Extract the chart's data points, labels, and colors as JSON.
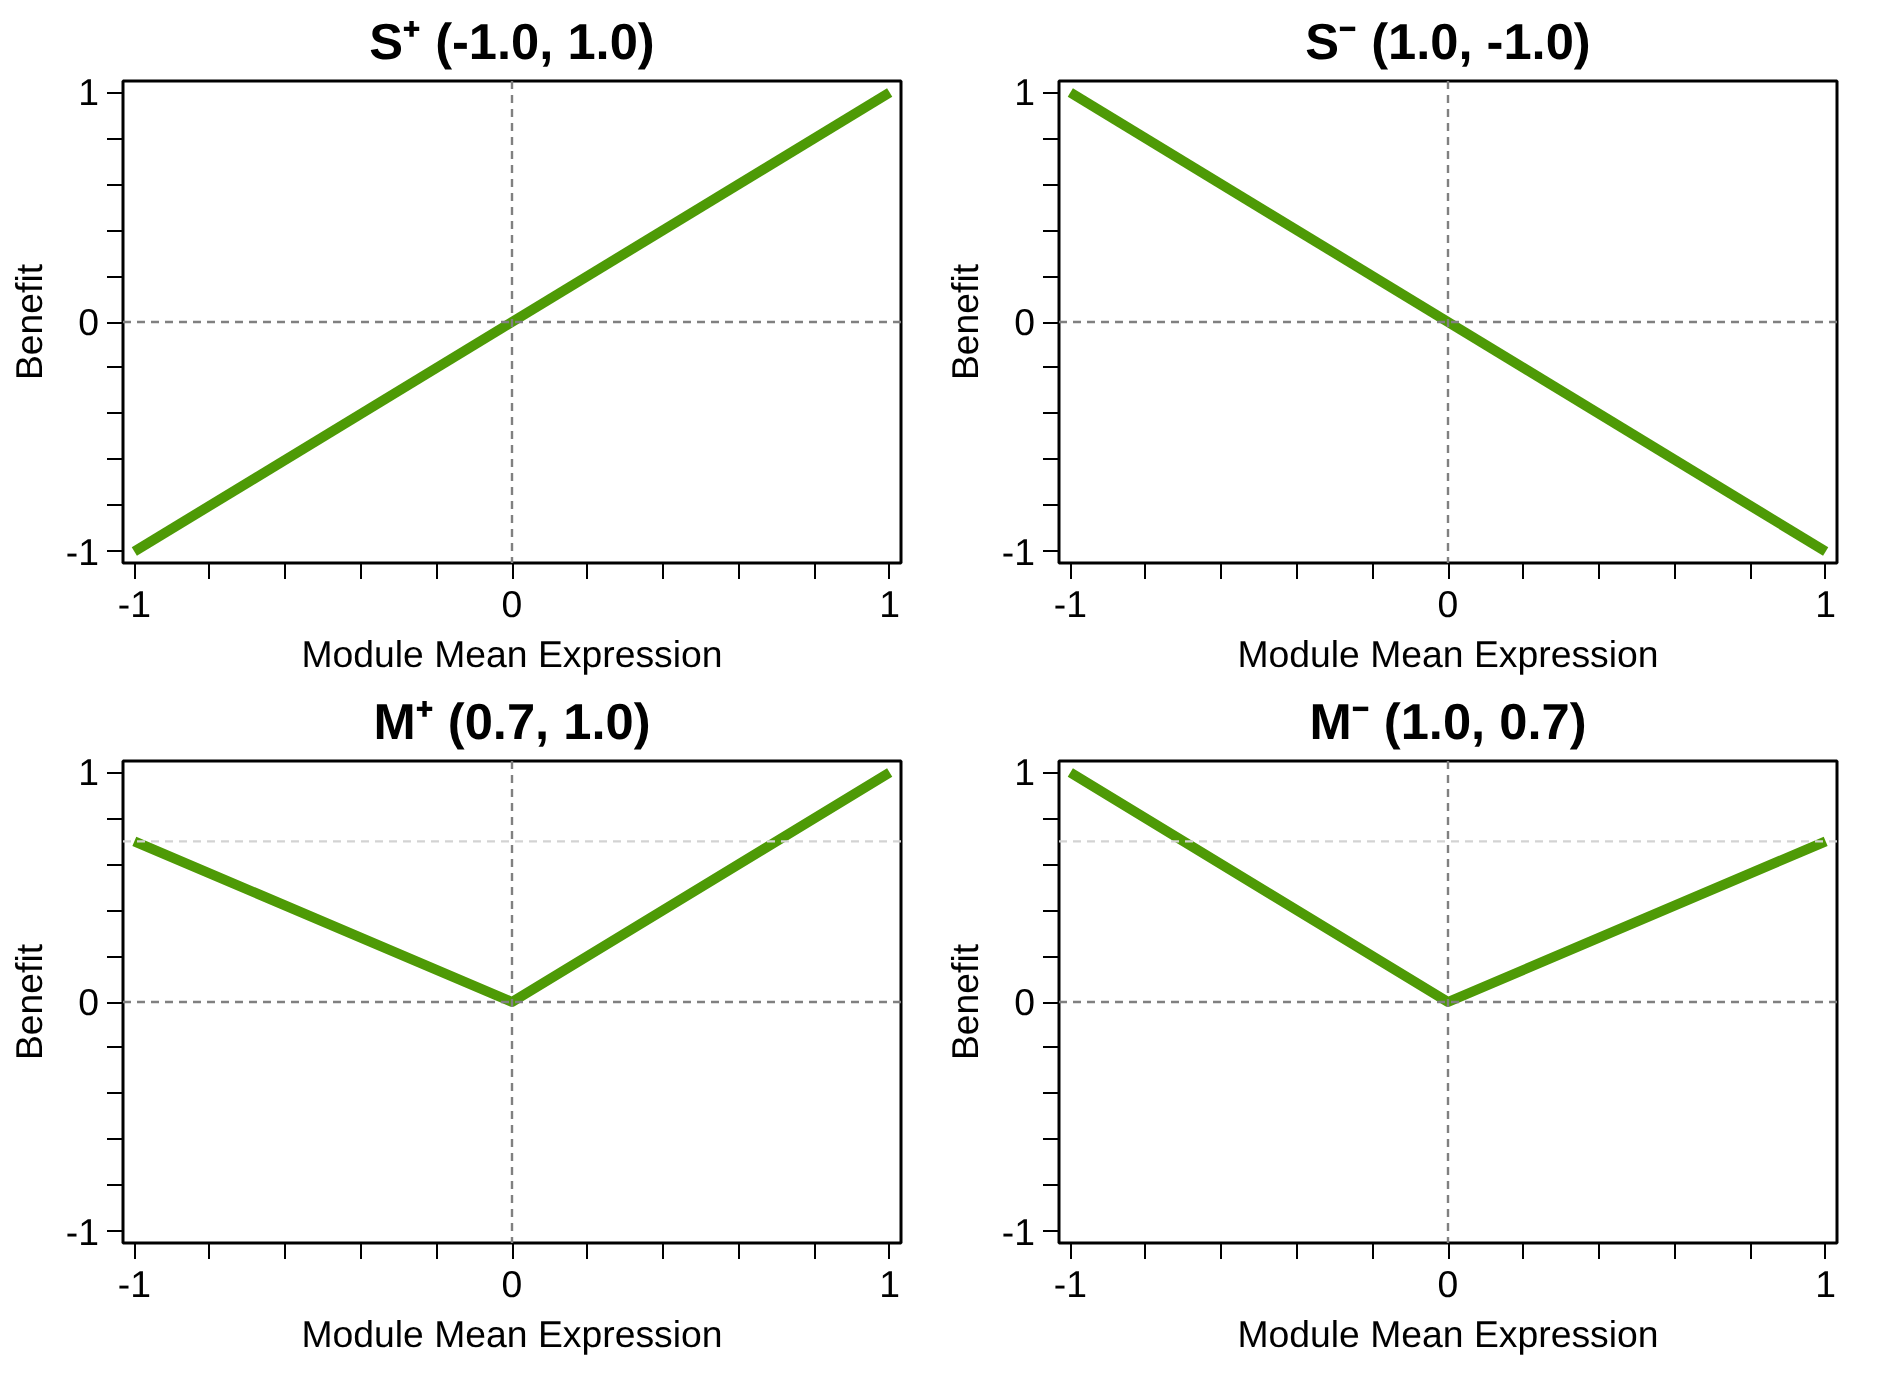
{
  "chart_data": [
    {
      "type": "line",
      "title": "S⁺ (-1.0, 1.0)",
      "xlabel": "Module Mean Expression",
      "ylabel": "Benefit",
      "x": [
        -1,
        0,
        1
      ],
      "series": [
        {
          "color": "#4e9a06",
          "values": [
            -1,
            0,
            1
          ]
        }
      ],
      "xlim": [
        -1.03,
        1.03
      ],
      "ylim": [
        -1.05,
        1.05
      ],
      "xticks": [
        -1,
        {
          "value": -0.8,
          "label": null
        },
        {
          "value": -0.6,
          "label": null
        },
        {
          "value": -0.4,
          "label": null
        },
        {
          "value": -0.2,
          "label": null
        },
        0,
        {
          "value": 0.2,
          "label": null
        },
        {
          "value": 0.4,
          "label": null
        },
        {
          "value": 0.6,
          "label": null
        },
        {
          "value": 0.8,
          "label": null
        },
        1
      ],
      "yticks": [
        -1,
        {
          "value": -0.8,
          "label": null
        },
        {
          "value": -0.6,
          "label": null
        },
        {
          "value": -0.4,
          "label": null
        },
        {
          "value": -0.2,
          "label": null
        },
        0,
        {
          "value": 0.2,
          "label": null
        },
        {
          "value": 0.4,
          "label": null
        },
        {
          "value": 0.6,
          "label": null
        },
        {
          "value": 0.8,
          "label": null
        },
        1
      ],
      "ref_lines": [
        {
          "axis": "x",
          "value": 0,
          "color": "#808080",
          "line_style": "dashed"
        },
        {
          "axis": "y",
          "value": 0,
          "color": "#808080",
          "line_style": "dashed"
        }
      ],
      "grid": false,
      "marker": "none",
      "line_style": "solid"
    },
    {
      "type": "line",
      "title": "S⁻ (1.0, -1.0)",
      "xlabel": "Module Mean Expression",
      "ylabel": "Benefit",
      "x": [
        -1,
        0,
        1
      ],
      "series": [
        {
          "color": "#4e9a06",
          "values": [
            1,
            0,
            -1
          ]
        }
      ],
      "xlim": [
        -1.03,
        1.03
      ],
      "ylim": [
        -1.05,
        1.05
      ],
      "xticks": [
        -1,
        {
          "value": -0.8,
          "label": null
        },
        {
          "value": -0.6,
          "label": null
        },
        {
          "value": -0.4,
          "label": null
        },
        {
          "value": -0.2,
          "label": null
        },
        0,
        {
          "value": 0.2,
          "label": null
        },
        {
          "value": 0.4,
          "label": null
        },
        {
          "value": 0.6,
          "label": null
        },
        {
          "value": 0.8,
          "label": null
        },
        1
      ],
      "yticks": [
        -1,
        {
          "value": -0.8,
          "label": null
        },
        {
          "value": -0.6,
          "label": null
        },
        {
          "value": -0.4,
          "label": null
        },
        {
          "value": -0.2,
          "label": null
        },
        0,
        {
          "value": 0.2,
          "label": null
        },
        {
          "value": 0.4,
          "label": null
        },
        {
          "value": 0.6,
          "label": null
        },
        {
          "value": 0.8,
          "label": null
        },
        1
      ],
      "ref_lines": [
        {
          "axis": "x",
          "value": 0,
          "color": "#808080",
          "line_style": "dashed"
        },
        {
          "axis": "y",
          "value": 0,
          "color": "#808080",
          "line_style": "dashed"
        }
      ],
      "grid": false,
      "marker": "none",
      "line_style": "solid"
    },
    {
      "type": "line",
      "title": "M⁺ (0.7, 1.0)",
      "xlabel": "Module Mean Expression",
      "ylabel": "Benefit",
      "x": [
        -1,
        0,
        1
      ],
      "series": [
        {
          "color": "#4e9a06",
          "values": [
            0.7,
            0,
            1
          ]
        }
      ],
      "xlim": [
        -1.03,
        1.03
      ],
      "ylim": [
        -1.05,
        1.05
      ],
      "xticks": [
        -1,
        {
          "value": -0.8,
          "label": null
        },
        {
          "value": -0.6,
          "label": null
        },
        {
          "value": -0.4,
          "label": null
        },
        {
          "value": -0.2,
          "label": null
        },
        0,
        {
          "value": 0.2,
          "label": null
        },
        {
          "value": 0.4,
          "label": null
        },
        {
          "value": 0.6,
          "label": null
        },
        {
          "value": 0.8,
          "label": null
        },
        1
      ],
      "yticks": [
        -1,
        {
          "value": -0.8,
          "label": null
        },
        {
          "value": -0.6,
          "label": null
        },
        {
          "value": -0.4,
          "label": null
        },
        {
          "value": -0.2,
          "label": null
        },
        0,
        {
          "value": 0.2,
          "label": null
        },
        {
          "value": 0.4,
          "label": null
        },
        {
          "value": 0.6,
          "label": null
        },
        {
          "value": 0.8,
          "label": null
        },
        1
      ],
      "ref_lines": [
        {
          "axis": "x",
          "value": 0,
          "color": "#808080",
          "line_style": "dashed"
        },
        {
          "axis": "y",
          "value": 0,
          "color": "#808080",
          "line_style": "dashed"
        },
        {
          "axis": "y",
          "value": 0.7,
          "color": "#d3d3d3",
          "line_style": "dashed"
        }
      ],
      "grid": false,
      "marker": "none",
      "line_style": "solid"
    },
    {
      "type": "line",
      "title": "M⁻ (1.0, 0.7)",
      "xlabel": "Module Mean Expression",
      "ylabel": "Benefit",
      "x": [
        -1,
        0,
        1
      ],
      "series": [
        {
          "color": "#4e9a06",
          "values": [
            1,
            0,
            0.7
          ]
        }
      ],
      "xlim": [
        -1.03,
        1.03
      ],
      "ylim": [
        -1.05,
        1.05
      ],
      "xticks": [
        -1,
        {
          "value": -0.8,
          "label": null
        },
        {
          "value": -0.6,
          "label": null
        },
        {
          "value": -0.4,
          "label": null
        },
        {
          "value": -0.2,
          "label": null
        },
        0,
        {
          "value": 0.2,
          "label": null
        },
        {
          "value": 0.4,
          "label": null
        },
        {
          "value": 0.6,
          "label": null
        },
        {
          "value": 0.8,
          "label": null
        },
        1
      ],
      "yticks": [
        -1,
        {
          "value": -0.8,
          "label": null
        },
        {
          "value": -0.6,
          "label": null
        },
        {
          "value": -0.4,
          "label": null
        },
        {
          "value": -0.2,
          "label": null
        },
        0,
        {
          "value": 0.2,
          "label": null
        },
        {
          "value": 0.4,
          "label": null
        },
        {
          "value": 0.6,
          "label": null
        },
        {
          "value": 0.8,
          "label": null
        },
        1
      ],
      "ref_lines": [
        {
          "axis": "x",
          "value": 0,
          "color": "#808080",
          "line_style": "dashed"
        },
        {
          "axis": "y",
          "value": 0,
          "color": "#808080",
          "line_style": "dashed"
        },
        {
          "axis": "y",
          "value": 0.7,
          "color": "#d3d3d3",
          "line_style": "dashed"
        }
      ],
      "grid": false,
      "marker": "none",
      "line_style": "solid"
    }
  ]
}
